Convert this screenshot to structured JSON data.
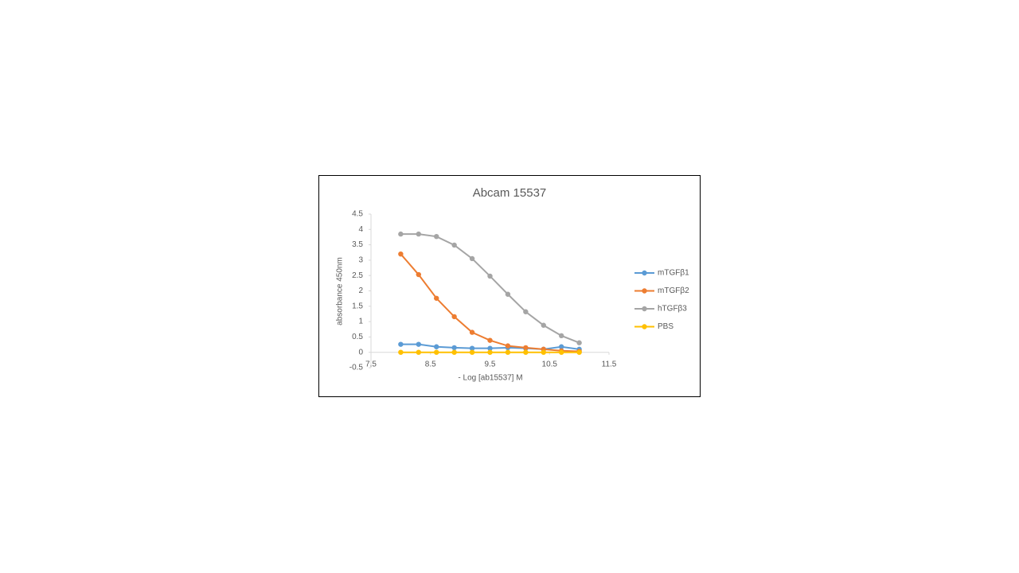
{
  "chart_data": {
    "type": "line",
    "title": "Abcam 15537",
    "x_label": "- Log [ab15537] M",
    "y_label": "absorbance 450nm",
    "x": [
      8.0,
      8.3,
      8.6,
      8.9,
      9.2,
      9.5,
      9.8,
      10.1,
      10.4,
      10.7,
      11.0
    ],
    "series": [
      {
        "name": "mTGFβ1",
        "color": "#5b9bd5",
        "values": [
          0.26,
          0.26,
          0.18,
          0.15,
          0.13,
          0.13,
          0.15,
          0.13,
          0.1,
          0.18,
          0.1
        ]
      },
      {
        "name": "mTGFβ2",
        "color": "#ed7d31",
        "values": [
          3.2,
          2.53,
          1.76,
          1.16,
          0.65,
          0.39,
          0.21,
          0.15,
          0.1,
          0.05,
          0.03
        ]
      },
      {
        "name": "hTGFβ3",
        "color": "#a5a5a5",
        "values": [
          3.85,
          3.85,
          3.77,
          3.49,
          3.05,
          2.48,
          1.89,
          1.32,
          0.88,
          0.54,
          0.31
        ]
      },
      {
        "name": "PBS",
        "color": "#ffc000",
        "values": [
          0,
          0,
          0,
          0,
          0,
          0,
          0,
          0,
          0,
          0,
          0
        ]
      }
    ],
    "xlim": [
      7.5,
      11.5
    ],
    "xticks": [
      7.5,
      8.5,
      9.5,
      10.5,
      11.5
    ],
    "ylim": [
      -0.5,
      4.5
    ],
    "yticks": [
      -0.5,
      0,
      0.5,
      1,
      1.5,
      2,
      2.5,
      3,
      3.5,
      4,
      4.5
    ],
    "legend": "right"
  }
}
